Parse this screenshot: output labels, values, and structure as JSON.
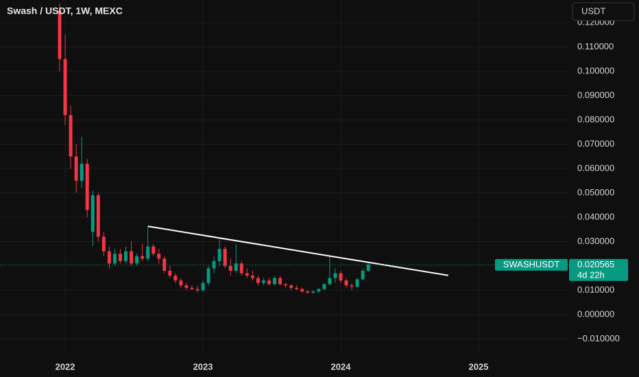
{
  "chart_data": {
    "type": "candlestick",
    "title": "Swash / USDT, 1W, MEXC",
    "currency_button": "USDT",
    "symbol_label": "SWASHUSDT",
    "countdown": "4d 22h",
    "up_color": "#089981",
    "down_color": "#f23645",
    "grid": true,
    "xlim": [
      2021.527,
      2025.657
    ],
    "xticks": [
      2022,
      2023,
      2024,
      2025
    ],
    "ylim": [
      -0.0158,
      0.1293
    ],
    "yticks": [
      {
        "value": 0.12,
        "label": "0.120000"
      },
      {
        "value": 0.11,
        "label": "0.110000"
      },
      {
        "value": 0.1,
        "label": "0.100000"
      },
      {
        "value": 0.09,
        "label": "0.090000"
      },
      {
        "value": 0.08,
        "label": "0.080000"
      },
      {
        "value": 0.07,
        "label": "0.070000"
      },
      {
        "value": 0.06,
        "label": "0.060000"
      },
      {
        "value": 0.05,
        "label": "0.050000"
      },
      {
        "value": 0.04,
        "label": "0.040000"
      },
      {
        "value": 0.03,
        "label": "0.030000"
      },
      {
        "value": 0.02,
        "label": "0.020000"
      },
      {
        "value": 0.01,
        "label": "0.010000"
      },
      {
        "value": 0,
        "label": "0.000000"
      },
      {
        "value": -0.01,
        "label": "−0.010000"
      }
    ],
    "x": [
      2021.96,
      2022.0,
      2022.04,
      2022.08,
      2022.12,
      2022.16,
      2022.2,
      2022.24,
      2022.28,
      2022.32,
      2022.36,
      2022.4,
      2022.44,
      2022.48,
      2022.52,
      2022.56,
      2022.6,
      2022.64,
      2022.68,
      2022.72,
      2022.76,
      2022.8,
      2022.84,
      2022.88,
      2022.92,
      2022.96,
      2023.0,
      2023.04,
      2023.08,
      2023.12,
      2023.16,
      2023.2,
      2023.24,
      2023.28,
      2023.32,
      2023.36,
      2023.4,
      2023.44,
      2023.48,
      2023.52,
      2023.56,
      2023.6,
      2023.64,
      2023.68,
      2023.72,
      2023.76,
      2023.8,
      2023.84,
      2023.88,
      2023.92,
      2023.96,
      2024.0,
      2024.04,
      2024.08,
      2024.12,
      2024.16,
      2024.2
    ],
    "open": [
      0.125,
      0.105,
      0.082,
      0.065,
      0.055,
      0.062,
      0.034,
      0.049,
      0.032,
      0.026,
      0.021,
      0.025,
      0.022,
      0.026,
      0.021,
      0.024,
      0.023,
      0.028,
      0.025,
      0.023,
      0.018,
      0.016,
      0.014,
      0.012,
      0.011,
      0.0105,
      0.01,
      0.013,
      0.019,
      0.022,
      0.027,
      0.02,
      0.018,
      0.021,
      0.017,
      0.016,
      0.015,
      0.013,
      0.014,
      0.0125,
      0.015,
      0.0125,
      0.012,
      0.011,
      0.0105,
      0.0095,
      0.009,
      0.0095,
      0.0105,
      0.0125,
      0.015,
      0.017,
      0.014,
      0.012,
      0.0115,
      0.0145,
      0.018
    ],
    "high": [
      0.128,
      0.115,
      0.086,
      0.07,
      0.073,
      0.064,
      0.051,
      0.05,
      0.034,
      0.028,
      0.027,
      0.027,
      0.028,
      0.03,
      0.025,
      0.029,
      0.036,
      0.029,
      0.027,
      0.024,
      0.02,
      0.017,
      0.015,
      0.013,
      0.012,
      0.012,
      0.014,
      0.02,
      0.024,
      0.031,
      0.028,
      0.023,
      0.029,
      0.022,
      0.019,
      0.018,
      0.016,
      0.015,
      0.015,
      0.016,
      0.016,
      0.013,
      0.0125,
      0.012,
      0.011,
      0.01,
      0.01,
      0.011,
      0.013,
      0.024,
      0.019,
      0.018,
      0.015,
      0.013,
      0.015,
      0.019,
      0.021
    ],
    "low": [
      0.1,
      0.078,
      0.06,
      0.05,
      0.052,
      0.04,
      0.028,
      0.03,
      0.024,
      0.019,
      0.02,
      0.021,
      0.021,
      0.02,
      0.02,
      0.022,
      0.022,
      0.024,
      0.021,
      0.017,
      0.015,
      0.013,
      0.011,
      0.01,
      0.01,
      0.009,
      0.0095,
      0.012,
      0.017,
      0.02,
      0.019,
      0.016,
      0.017,
      0.016,
      0.015,
      0.014,
      0.012,
      0.012,
      0.012,
      0.012,
      0.012,
      0.011,
      0.01,
      0.01,
      0.009,
      0.0085,
      0.0085,
      0.009,
      0.01,
      0.012,
      0.013,
      0.013,
      0.011,
      0.01,
      0.011,
      0.014,
      0.0175
    ],
    "close": [
      0.105,
      0.082,
      0.065,
      0.055,
      0.062,
      0.043,
      0.049,
      0.032,
      0.026,
      0.021,
      0.025,
      0.022,
      0.026,
      0.021,
      0.024,
      0.023,
      0.028,
      0.025,
      0.023,
      0.018,
      0.016,
      0.014,
      0.012,
      0.011,
      0.0105,
      0.01,
      0.013,
      0.019,
      0.022,
      0.027,
      0.02,
      0.018,
      0.021,
      0.017,
      0.016,
      0.015,
      0.013,
      0.014,
      0.0125,
      0.015,
      0.0125,
      0.012,
      0.011,
      0.0105,
      0.0095,
      0.009,
      0.0095,
      0.0105,
      0.0125,
      0.015,
      0.017,
      0.014,
      0.012,
      0.0115,
      0.0145,
      0.018,
      0.020565
    ],
    "trendline": {
      "x": [
        2022.6,
        2024.78
      ],
      "values": [
        0.0363,
        0.0161
      ],
      "color": "#ffffff"
    }
  }
}
